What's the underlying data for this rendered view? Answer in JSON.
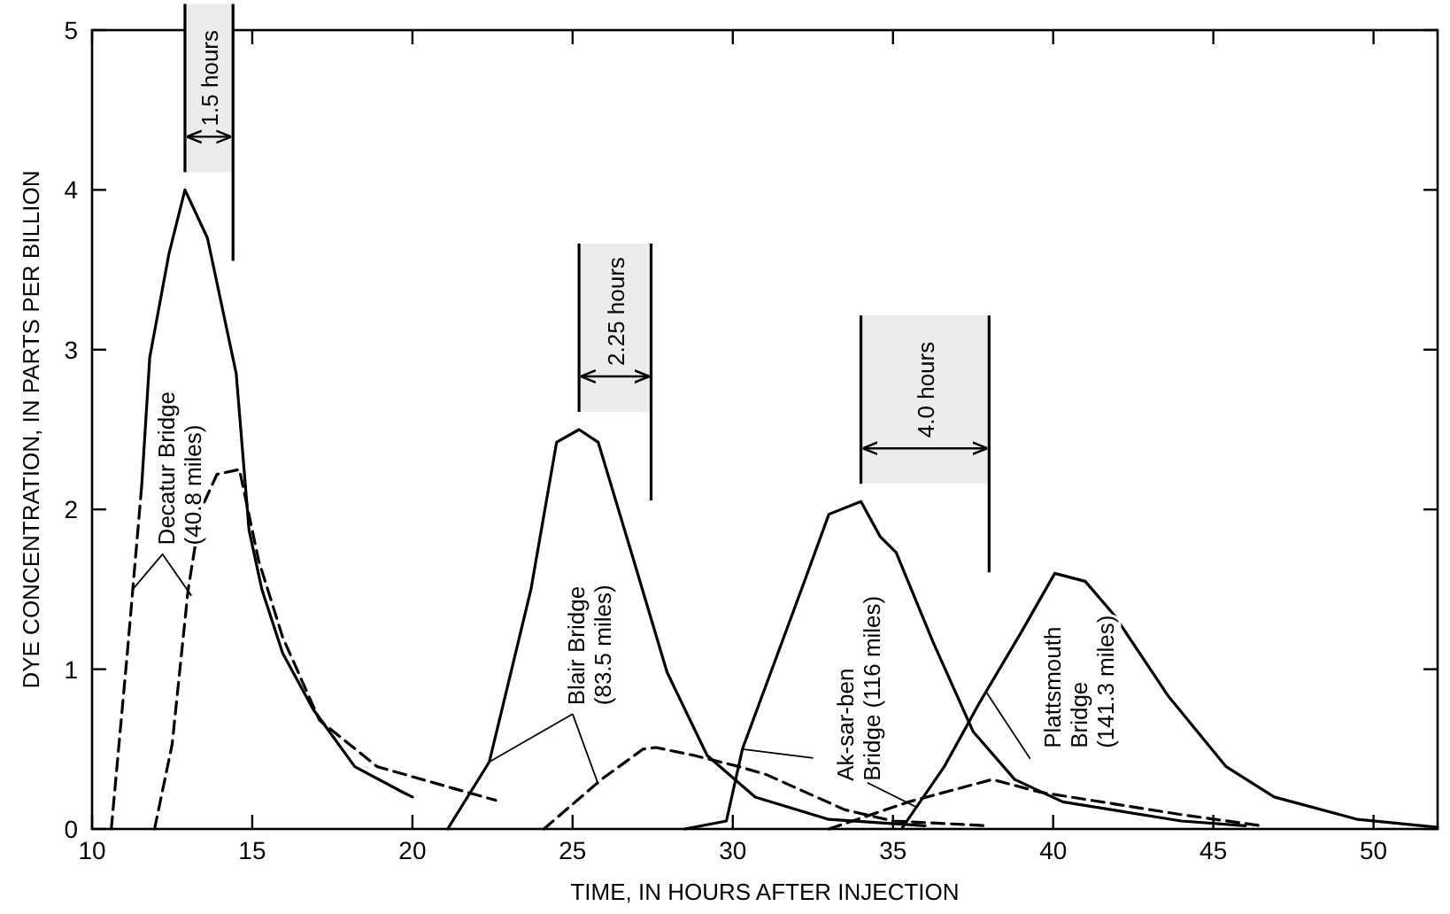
{
  "chart_data": {
    "type": "line",
    "xlabel": "TIME, IN HOURS AFTER INJECTION",
    "ylabel": "DYE CONCENTRATION, IN PARTS PER BILLION",
    "xlim": [
      10,
      52
    ],
    "ylim": [
      0,
      5
    ],
    "xticks": [
      10,
      15,
      20,
      25,
      30,
      35,
      40,
      45,
      50
    ],
    "yticks": [
      0,
      1,
      2,
      3,
      4,
      5
    ],
    "grid": false,
    "marker": "none",
    "series": [
      {
        "color": "#000000",
        "line_style": "dashed",
        "x": [
          10.6,
          11.1,
          11.55
        ],
        "values": [
          0,
          1.1,
          2.15
        ]
      },
      {
        "color": "#000000",
        "line_style": "solid",
        "x": [
          11.55,
          11.8,
          12.4,
          12.9,
          13.6,
          14.5,
          14.9,
          15.3,
          15.95,
          16.9,
          18.2,
          19.7,
          20
        ],
        "values": [
          2.15,
          2.95,
          3.6,
          4.0,
          3.7,
          2.85,
          1.87,
          1.5,
          1.1,
          0.75,
          0.39,
          0.23,
          0.2
        ]
      },
      {
        "color": "#000000",
        "line_style": "dashed",
        "x": [
          11.95,
          12.5,
          13.0,
          13.4,
          13.9,
          14.6,
          15.2,
          15.95,
          17.1,
          18.9,
          21.7,
          22.6
        ],
        "values": [
          0,
          0.53,
          1.5,
          2.0,
          2.22,
          2.25,
          1.68,
          1.2,
          0.68,
          0.39,
          0.23,
          0.18
        ]
      },
      {
        "color": "#000000",
        "line_style": "solid",
        "x": [
          21.1,
          22.4,
          23.7,
          24.5,
          25.2,
          25.8,
          26.85,
          27.95,
          29.2,
          30.7,
          33,
          36
        ],
        "values": [
          0,
          0.42,
          1.5,
          2.42,
          2.5,
          2.42,
          1.72,
          0.98,
          0.46,
          0.2,
          0.06,
          0.02
        ]
      },
      {
        "color": "#000000",
        "line_style": "dashed",
        "x": [
          24.1,
          25.9,
          27.2,
          27.6,
          28.8,
          30.2,
          31.05,
          33.5,
          35,
          38
        ],
        "values": [
          0,
          0.31,
          0.5,
          0.51,
          0.46,
          0.39,
          0.34,
          0.12,
          0.05,
          0.02
        ]
      },
      {
        "color": "#000000",
        "line_style": "solid",
        "x": [
          28.5,
          29.8,
          30.3,
          32.2,
          33.0,
          34.0,
          34.6,
          35.1,
          36.25,
          37.5,
          38.8,
          40.3,
          44,
          46
        ],
        "values": [
          0,
          0.05,
          0.5,
          1.53,
          1.97,
          2.05,
          1.83,
          1.73,
          1.17,
          0.61,
          0.31,
          0.17,
          0.05,
          0.02
        ]
      },
      {
        "color": "#000000",
        "line_style": "dashed",
        "x": [
          33,
          35.5,
          38.1,
          39.6,
          44,
          46.5
        ],
        "values": [
          0,
          0.17,
          0.31,
          0.23,
          0.09,
          0.02
        ]
      },
      {
        "color": "#000000",
        "line_style": "solid",
        "x": [
          35.3,
          36.6,
          37.7,
          39.0,
          40.05,
          41.0,
          41.9,
          43.6,
          45.4,
          46.9,
          49.5,
          52
        ],
        "values": [
          0.01,
          0.39,
          0.79,
          1.23,
          1.6,
          1.55,
          1.34,
          0.83,
          0.39,
          0.2,
          0.06,
          0.01
        ]
      }
    ],
    "bands": [
      {
        "axis": "x",
        "from": 12.9,
        "to": 14.4,
        "label": "1.5 hours"
      },
      {
        "axis": "x",
        "from": 25.2,
        "to": 27.45,
        "label": "2.25 hours"
      },
      {
        "axis": "x",
        "from": 34.0,
        "to": 38.0,
        "label": "4.0 hours"
      }
    ],
    "annotations": [
      {
        "text": "Decatur Bridge\n(40.8 miles)",
        "x": 11.27,
        "y": 1.5
      },
      {
        "text": "Blair Bridge\n(83.5 miles)",
        "x": 22.4,
        "y": 0.42
      },
      {
        "text": "Ak-sar-ben\nBridge (116 miles)",
        "x": 30.3,
        "y": 0.5
      },
      {
        "text": "Plattsmouth\nBridge\n(141.3 miles)",
        "x": 37.9,
        "y": 0.86
      }
    ]
  }
}
